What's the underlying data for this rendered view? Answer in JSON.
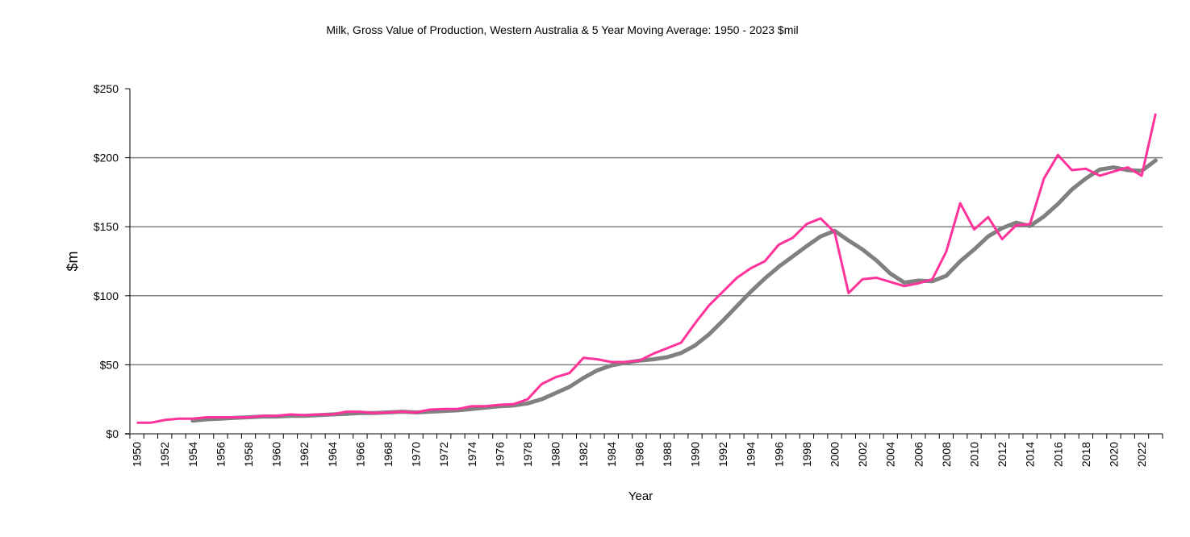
{
  "chart_data": {
    "type": "line",
    "title": "Milk, Gross Value of Production,  Western Australia & 5 Year Moving Average: 1950 - 2023 $mil",
    "xlabel": "Year",
    "ylabel": "$m",
    "ylim": [
      0,
      250
    ],
    "y_ticks": [
      0,
      50,
      100,
      150,
      200,
      250
    ],
    "y_tick_labels": [
      "$0",
      "$50",
      "$100",
      "$150",
      "$200",
      "$250"
    ],
    "grid": "horizontal",
    "x_start": 1950,
    "x_end": 2023,
    "x_tick_labels": [
      "1950",
      "1952",
      "1954",
      "1956",
      "1958",
      "1960",
      "1962",
      "1964",
      "1966",
      "1968",
      "1970",
      "1972",
      "1974",
      "1976",
      "1978",
      "1980",
      "1982",
      "1984",
      "1986",
      "1988",
      "1990",
      "1992",
      "1994",
      "1996",
      "1998",
      "2000",
      "2002",
      "2004",
      "2006",
      "2008",
      "2010",
      "2012",
      "2014",
      "2016",
      "2018",
      "2020",
      "2022"
    ],
    "series": [
      {
        "name": "Gross Value of Production",
        "color": "#ff3399",
        "start_year": 1950,
        "values": [
          8,
          8,
          10,
          11,
          11,
          12,
          12,
          12,
          12,
          13,
          13,
          14,
          13.5,
          14,
          14,
          16,
          16,
          15,
          15.5,
          16,
          15.5,
          17.5,
          18,
          18,
          20,
          20,
          21,
          21.5,
          25,
          36,
          41,
          44,
          55,
          54,
          52,
          52,
          53,
          58,
          62,
          66,
          80,
          93,
          103,
          113,
          120,
          125,
          137,
          142,
          152,
          156,
          146,
          102,
          112,
          113,
          110,
          107,
          109,
          112,
          132,
          167,
          148,
          157,
          141,
          151,
          152,
          185,
          202,
          191,
          192,
          187,
          190,
          193,
          187,
          232
        ]
      },
      {
        "name": "5 Year Moving Average",
        "color": "#808080",
        "start_year": 1954,
        "values": [
          9.5,
          10.5,
          11,
          11.5,
          12,
          12.5,
          12.5,
          13,
          13,
          13.5,
          14,
          14.5,
          15,
          15,
          15.5,
          16,
          15.5,
          16,
          16.5,
          17,
          18,
          19,
          20,
          20.5,
          22,
          25,
          29.5,
          34,
          40.5,
          46,
          49.5,
          51.5,
          53,
          54,
          55.5,
          58.5,
          64,
          72,
          82,
          92.5,
          103,
          112.5,
          121,
          128.5,
          136,
          143,
          147,
          140,
          133.5,
          125.5,
          116,
          109.5,
          111,
          110.5,
          114.5,
          125,
          133.5,
          143,
          149,
          153,
          150.5,
          157.5,
          166.5,
          177,
          185,
          191.5,
          193,
          191,
          190.5,
          198
        ]
      }
    ]
  }
}
